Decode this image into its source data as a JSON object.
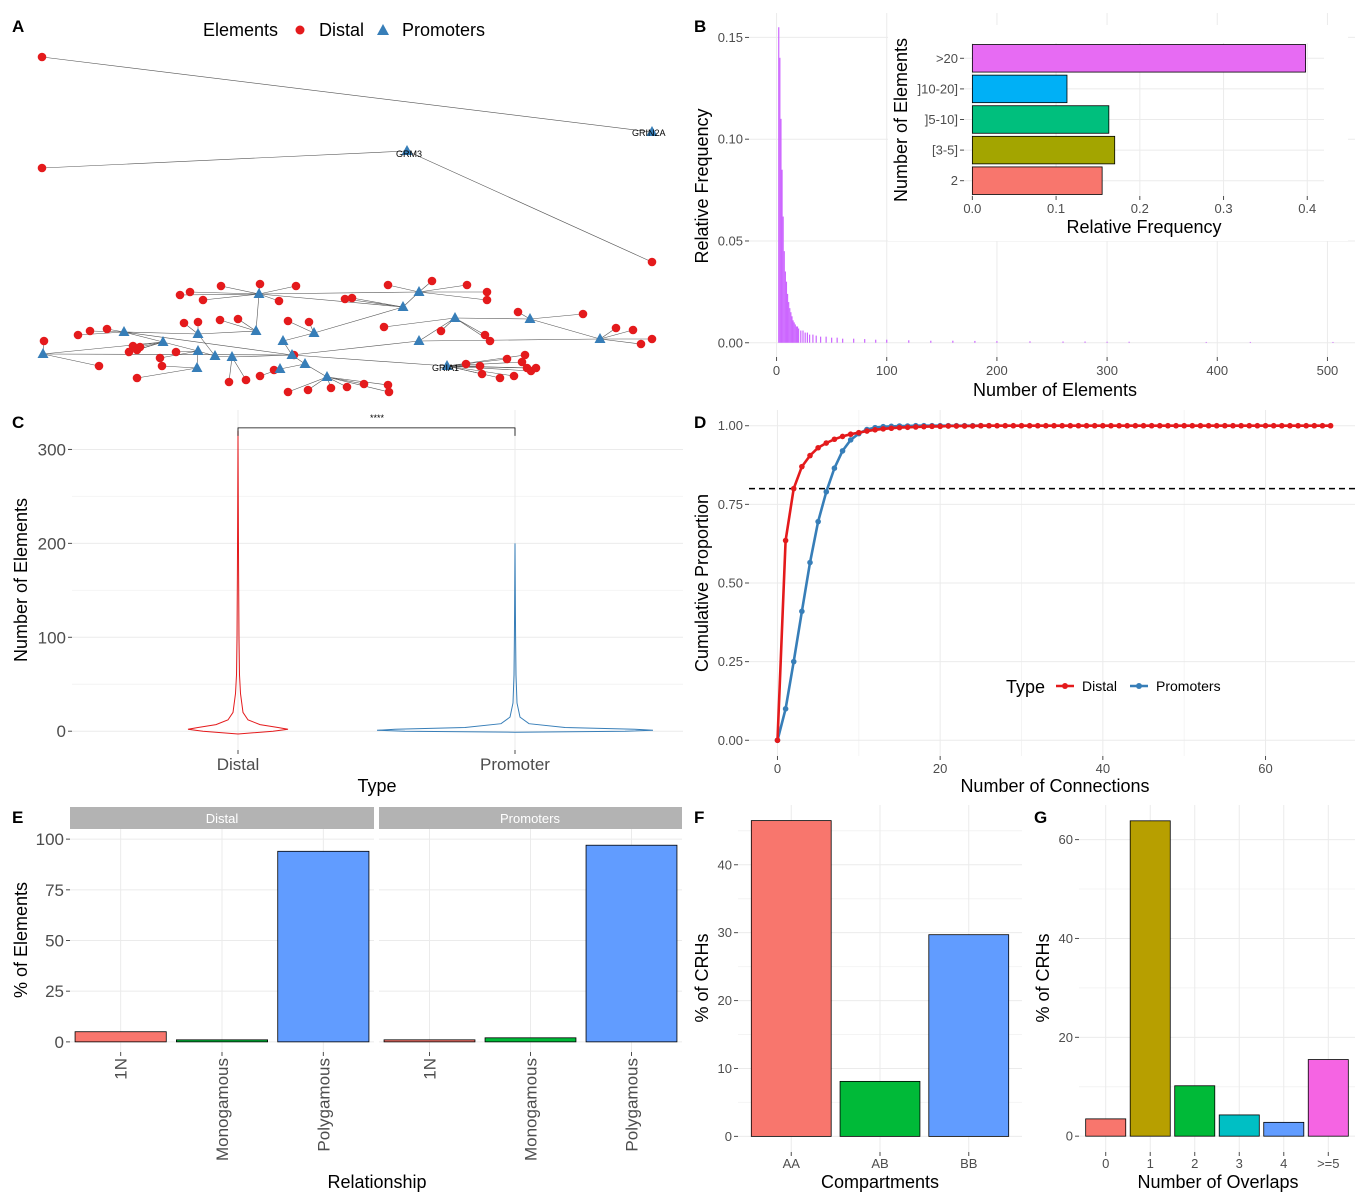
{
  "panels": {
    "A": {
      "label": "A",
      "legend_title": "Elements",
      "legend_items": [
        "Distal",
        "Promoters"
      ],
      "node_labels": [
        "GRIN2A",
        "GRM3",
        "GRIA1"
      ],
      "colors": {
        "distal": "#e41a1c",
        "promoters": "#377eb8"
      }
    },
    "B": {
      "label": "B",
      "chart_type": "bar",
      "xlabel": "Number of Elements",
      "ylabel": "Relative Frequency",
      "x_ticks": [
        0,
        100,
        200,
        300,
        400,
        500
      ],
      "y_ticks": [
        "0.00",
        "0.05",
        "0.10",
        "0.15"
      ],
      "xlim": [
        -25,
        525
      ],
      "ylim": [
        -0.007,
        0.162
      ],
      "color": "#cc66ff",
      "hist_x": [
        2,
        3,
        4,
        5,
        6,
        7,
        8,
        9,
        10,
        11,
        12,
        13,
        14,
        15,
        16,
        17,
        18,
        19,
        20,
        22,
        24,
        26,
        28,
        30,
        33,
        36,
        40,
        45,
        50,
        55,
        60,
        70,
        80,
        90,
        100,
        120,
        140,
        160,
        180,
        200,
        230,
        260,
        280,
        300,
        320,
        390,
        430,
        505
      ],
      "hist_y": [
        0.155,
        0.14,
        0.11,
        0.085,
        0.062,
        0.045,
        0.035,
        0.03,
        0.024,
        0.02,
        0.017,
        0.015,
        0.013,
        0.011,
        0.01,
        0.009,
        0.008,
        0.008,
        0.007,
        0.006,
        0.006,
        0.005,
        0.005,
        0.004,
        0.004,
        0.0035,
        0.003,
        0.003,
        0.0025,
        0.0025,
        0.002,
        0.002,
        0.0018,
        0.0015,
        0.0015,
        0.0012,
        0.001,
        0.001,
        0.0009,
        0.0008,
        0.0007,
        0.0006,
        0.0006,
        0.0005,
        0.0005,
        0.0004,
        0.0004,
        0.0004
      ],
      "inset": {
        "chart_type": "bar",
        "orientation": "horizontal",
        "xlabel": "Relative Frequency",
        "ylabel": "Number of Elements",
        "categories": [
          "2",
          "[3-5]",
          "]5-10]",
          "]10-20]",
          ">20"
        ],
        "values": [
          0.155,
          0.17,
          0.163,
          0.113,
          0.398
        ],
        "colors": [
          "#f8766d",
          "#a3a500",
          "#00bf7d",
          "#00b0f6",
          "#e76bf3"
        ],
        "x_ticks": [
          "0.0",
          "0.1",
          "0.2",
          "0.3",
          "0.4"
        ],
        "xlim": [
          -0.01,
          0.42
        ]
      }
    },
    "C": {
      "label": "C",
      "chart_type": "violin",
      "xlabel": "Type",
      "ylabel": "Number of Elements",
      "categories": [
        "Distal",
        "Promoter"
      ],
      "y_ticks": [
        0,
        100,
        200,
        300
      ],
      "ylim": [
        -20,
        342
      ],
      "colors": [
        "#e41a1c",
        "#377eb8"
      ],
      "significance": "****",
      "bracket_y": 323,
      "max_values": [
        320,
        200
      ]
    },
    "D": {
      "label": "D",
      "chart_type": "line",
      "xlabel": "Number of Connections",
      "ylabel": "Cumulative Proportion",
      "x_ticks": [
        0,
        20,
        40,
        60
      ],
      "y_ticks": [
        "0.00",
        "0.25",
        "0.50",
        "0.75",
        "1.00"
      ],
      "xlim": [
        -3.5,
        71
      ],
      "ylim": [
        -0.05,
        1.05
      ],
      "hline": 0.8,
      "legend_title": "Type",
      "series": [
        {
          "name": "Distal",
          "color": "#e41a1c",
          "x": [
            0,
            1,
            2,
            3,
            4,
            5,
            6,
            7,
            8,
            9,
            10,
            11,
            12,
            13,
            14,
            15,
            16,
            17,
            18,
            19,
            20,
            21,
            22,
            23,
            24,
            25,
            26,
            27,
            28,
            29,
            30,
            31,
            32,
            33,
            34,
            35,
            36,
            37,
            38,
            39,
            40,
            41,
            42,
            43,
            44,
            45,
            46,
            47,
            48,
            49,
            50,
            51,
            52,
            53,
            54,
            55,
            56,
            57,
            58,
            59,
            60,
            61,
            62,
            63,
            64,
            65,
            66,
            67,
            68
          ],
          "y": [
            0.0,
            0.635,
            0.8,
            0.87,
            0.905,
            0.93,
            0.945,
            0.957,
            0.966,
            0.973,
            0.978,
            0.983,
            0.987,
            0.99,
            0.992,
            0.994,
            0.995,
            0.996,
            0.997,
            0.998,
            0.998,
            0.999,
            0.999,
            0.999,
            0.999,
            1.0,
            1.0,
            1.0,
            1.0,
            1.0,
            1.0,
            1.0,
            1.0,
            1.0,
            1.0,
            1.0,
            1.0,
            1.0,
            1.0,
            1.0,
            1.0,
            1.0,
            1.0,
            1.0,
            1.0,
            1.0,
            1.0,
            1.0,
            1.0,
            1.0,
            1.0,
            1.0,
            1.0,
            1.0,
            1.0,
            1.0,
            1.0,
            1.0,
            1.0,
            1.0,
            1.0,
            1.0,
            1.0,
            1.0,
            1.0,
            1.0,
            1.0,
            1.0,
            1.0
          ]
        },
        {
          "name": "Promoters",
          "color": "#377eb8",
          "x": [
            0,
            1,
            2,
            3,
            4,
            5,
            6,
            7,
            8,
            9,
            10,
            11,
            12,
            13,
            14,
            15,
            16,
            17,
            18,
            19,
            20,
            21,
            22,
            23,
            24,
            25,
            26
          ],
          "y": [
            0.0,
            0.1,
            0.25,
            0.41,
            0.565,
            0.695,
            0.79,
            0.865,
            0.92,
            0.955,
            0.975,
            0.988,
            0.994,
            0.997,
            0.998,
            0.999,
            0.999,
            1.0,
            1.0,
            1.0,
            1.0,
            1.0,
            1.0,
            1.0,
            1.0,
            1.0,
            1.0
          ]
        }
      ]
    },
    "E": {
      "label": "E",
      "chart_type": "bar",
      "xlabel": "Relationship",
      "ylabel": "% of Elements",
      "facets": [
        "Distal",
        "Promoters"
      ],
      "categories": [
        "1N",
        "Monogamous",
        "Polygamous"
      ],
      "values": [
        [
          5,
          1,
          94
        ],
        [
          1,
          2,
          97
        ]
      ],
      "colors": [
        "#f8766d",
        "#00ba38",
        "#619cff"
      ],
      "y_ticks": [
        0,
        25,
        50,
        75,
        100
      ],
      "ylim": [
        -5,
        105
      ]
    },
    "F": {
      "label": "F",
      "chart_type": "bar",
      "xlabel": "Compartments",
      "ylabel": "% of CRHs",
      "categories": [
        "AA",
        "AB",
        "BB"
      ],
      "values": [
        46.5,
        8.1,
        29.7
      ],
      "colors": [
        "#f8766d",
        "#00ba38",
        "#619cff"
      ],
      "y_ticks": [
        0,
        10,
        20,
        30,
        40
      ],
      "ylim": [
        -2.3,
        48.8
      ]
    },
    "G": {
      "label": "G",
      "chart_type": "bar",
      "xlabel": "Number of Overlaps",
      "ylabel": "% of CRHs",
      "categories": [
        "0",
        "1",
        "2",
        "3",
        "4",
        ">=5"
      ],
      "values": [
        3.5,
        63.8,
        10.2,
        4.3,
        2.8,
        15.5
      ],
      "colors": [
        "#f8766d",
        "#b79f00",
        "#00ba38",
        "#00bfc4",
        "#619cff",
        "#f564e3"
      ],
      "y_ticks": [
        0,
        20,
        40,
        60
      ],
      "ylim": [
        -3.2,
        67.0
      ]
    }
  }
}
